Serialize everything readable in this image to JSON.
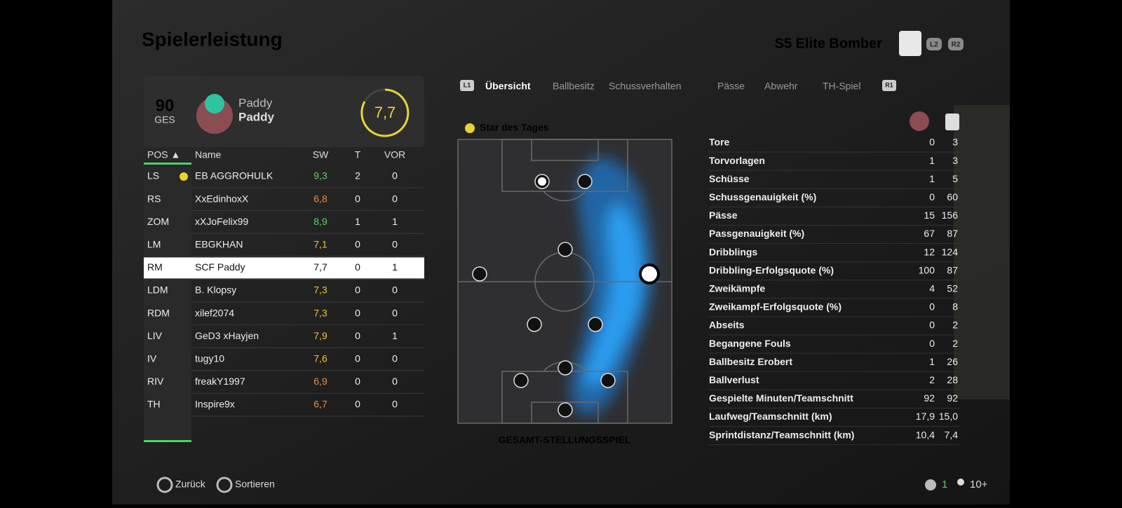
{
  "header": {
    "title": "Spielerleistung",
    "team": "S5 Elite Bomber",
    "buttons": [
      "L2",
      "R2"
    ]
  },
  "player_card": {
    "overall": "90",
    "overall_label": "GES",
    "name_line1": "Paddy",
    "name_line2": "Paddy",
    "match_rating": "7,7"
  },
  "table": {
    "columns": [
      "POS ▲",
      "Name",
      "SW",
      "T",
      "VOR"
    ],
    "rows": [
      {
        "cells": [
          "LS",
          "EB AGGROHULK",
          "9,3",
          "2",
          "0"
        ],
        "color": "#5fd35a"
      },
      {
        "cells": [
          "RS",
          "XxEdinhoxX",
          "6,8",
          "0",
          "0"
        ],
        "color": "#f08a3a"
      },
      {
        "cells": [
          "ZOM",
          "xXJoFelix99",
          "8,9",
          "1",
          "1"
        ],
        "color": "#5fd35a"
      },
      {
        "cells": [
          "LM",
          "EBGKHAN",
          "7,1",
          "0",
          "0"
        ],
        "color": "#f2c230"
      },
      {
        "cells": [
          "RM",
          "SCF Paddy",
          "7,7",
          "0",
          "1"
        ],
        "color": "#111111"
      },
      {
        "cells": [
          "LDM",
          "B. Klopsy",
          "7,3",
          "0",
          "0"
        ],
        "color": "#f2c230"
      },
      {
        "cells": [
          "RDM",
          "xilef2074",
          "7,3",
          "0",
          "0"
        ],
        "color": "#f2c230"
      },
      {
        "cells": [
          "LIV",
          "GeD3 xHayjen",
          "7,9",
          "0",
          "1"
        ],
        "color": "#f2c230"
      },
      {
        "cells": [
          "IV",
          "tugy10",
          "7,6",
          "0",
          "0"
        ],
        "color": "#f2c230"
      },
      {
        "cells": [
          "RIV",
          "freakY1997",
          "6,9",
          "0",
          "0"
        ],
        "color": "#f08a3a"
      },
      {
        "cells": [
          "TH",
          "Inspire9x",
          "6,7",
          "0",
          "0"
        ],
        "color": "#f08a3a"
      }
    ],
    "selected": 4
  },
  "tabs": {
    "left_button": "L1",
    "items": [
      "Übersicht",
      "Ballbesitz",
      "Schussverhalten",
      "Pässe",
      "Abwehr",
      "TH-Spiel"
    ],
    "right_button": "R1",
    "active": 0
  },
  "star_label": "Star des Tages",
  "pitch_caption": "GESAMT-STELLUNGSSPIEL",
  "stats": [
    [
      "Tore",
      "0",
      "3"
    ],
    [
      "Torvorlagen",
      "1",
      "3"
    ],
    [
      "Schüsse",
      "1",
      "5"
    ],
    [
      "Schussgenauigkeit (%)",
      "0",
      "60"
    ],
    [
      "Pässe",
      "15",
      "156"
    ],
    [
      "Passgenauigkeit (%)",
      "67",
      "87"
    ],
    [
      "Dribblings",
      "12",
      "124"
    ],
    [
      "Dribbling-Erfolgsquote (%)",
      "100",
      "87"
    ],
    [
      "Zweikämpfe",
      "4",
      "52"
    ],
    [
      "Zweikampf-Erfolgsquote (%)",
      "0",
      "8"
    ],
    [
      "Abseits",
      "0",
      "2"
    ],
    [
      "Begangene Fouls",
      "0",
      "2"
    ],
    [
      "Ballbesitz Erobert",
      "1",
      "26"
    ],
    [
      "Ballverlust",
      "2",
      "28"
    ],
    [
      "Gespielte Minuten/Teamschnitt",
      "92",
      "92"
    ],
    [
      "Laufweg/Teamschnitt (km)",
      "17,9",
      "15,0"
    ],
    [
      "Sprintdistanz/Teamschnitt (km)",
      "10,4",
      "7,4"
    ]
  ],
  "footer": {
    "back": "Zurück",
    "sort": "Sortieren",
    "count": "1",
    "players": "10+"
  }
}
